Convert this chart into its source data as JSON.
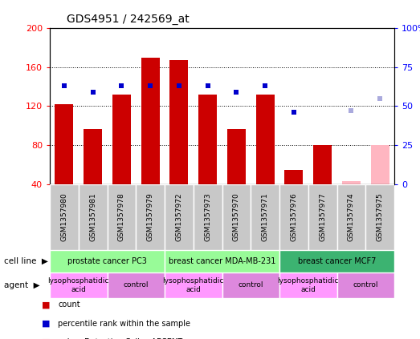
{
  "title": "GDS4951 / 242569_at",
  "samples": [
    "GSM1357980",
    "GSM1357981",
    "GSM1357978",
    "GSM1357979",
    "GSM1357972",
    "GSM1357973",
    "GSM1357970",
    "GSM1357971",
    "GSM1357976",
    "GSM1357977",
    "GSM1357974",
    "GSM1357975"
  ],
  "counts": [
    122,
    97,
    132,
    170,
    167,
    132,
    97,
    132,
    55,
    80,
    null,
    null
  ],
  "ranks": [
    63,
    59,
    63,
    63,
    63,
    63,
    59,
    63,
    46,
    null,
    null,
    null
  ],
  "absent_counts": [
    null,
    null,
    null,
    null,
    null,
    null,
    null,
    null,
    null,
    null,
    43,
    80
  ],
  "absent_ranks": [
    null,
    null,
    null,
    null,
    null,
    null,
    null,
    null,
    null,
    null,
    47,
    55
  ],
  "cell_lines": [
    {
      "label": "prostate cancer PC3",
      "start": 0,
      "end": 4,
      "color": "#98FB98"
    },
    {
      "label": "breast cancer MDA-MB-231",
      "start": 4,
      "end": 8,
      "color": "#98FB98"
    },
    {
      "label": "breast cancer MCF7",
      "start": 8,
      "end": 12,
      "color": "#3CB371"
    }
  ],
  "agents": [
    {
      "label": "lysophosphatidic\nacid",
      "start": 0,
      "end": 2
    },
    {
      "label": "control",
      "start": 2,
      "end": 4
    },
    {
      "label": "lysophosphatidic\nacid",
      "start": 4,
      "end": 6
    },
    {
      "label": "control",
      "start": 6,
      "end": 8
    },
    {
      "label": "lysophosphatidic\nacid",
      "start": 8,
      "end": 10
    },
    {
      "label": "control",
      "start": 10,
      "end": 12
    }
  ],
  "ylim_left": [
    40,
    200
  ],
  "ylim_right": [
    0,
    100
  ],
  "yticks_left": [
    40,
    80,
    120,
    160,
    200
  ],
  "yticks_right": [
    0,
    25,
    50,
    75,
    100
  ],
  "bar_color": "#CC0000",
  "absent_bar_color": "#FFB6C1",
  "rank_color": "#0000CC",
  "absent_rank_color": "#AAAADD",
  "chart_bg": "#FFFFFF",
  "tick_box_bg": "#C8C8C8",
  "lyso_color": "#FF99FF",
  "control_color": "#DD88DD"
}
